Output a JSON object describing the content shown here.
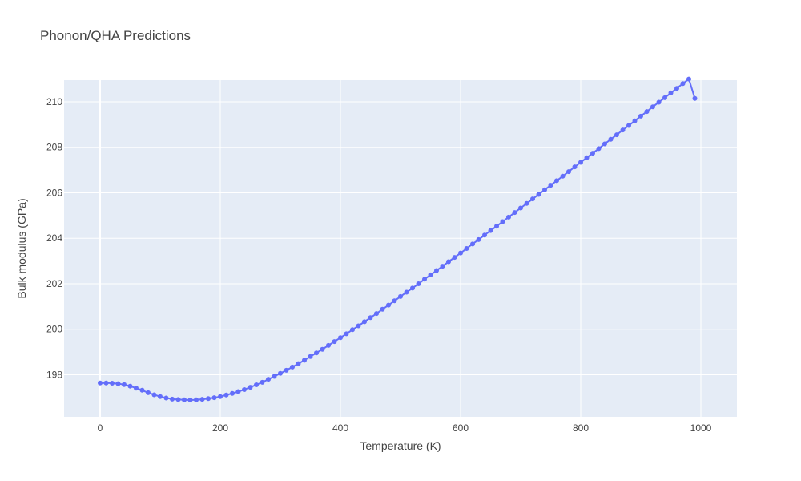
{
  "chart_data": {
    "type": "line",
    "title": "Phonon/QHA Predictions",
    "xlabel": "Temperature (K)",
    "ylabel": "Bulk modulus (GPa)",
    "xlim": [
      -60,
      1060
    ],
    "ylim": [
      196.15,
      210.95
    ],
    "x_ticks": [
      0,
      200,
      400,
      600,
      800,
      1000
    ],
    "y_ticks": [
      198,
      200,
      202,
      204,
      206,
      208,
      210
    ],
    "grid": true,
    "legend": "none",
    "colors": {
      "series": "#636efa",
      "plot_bg": "#e5ecf6",
      "grid": "#ffffff"
    },
    "series": [
      {
        "x": [
          0,
          10,
          20,
          30,
          40,
          50,
          60,
          70,
          80,
          90,
          100,
          110,
          120,
          130,
          140,
          150,
          160,
          170,
          180,
          190,
          200,
          210,
          220,
          230,
          240,
          250,
          260,
          270,
          280,
          290,
          300,
          310,
          320,
          330,
          340,
          350,
          360,
          370,
          380,
          390,
          400,
          410,
          420,
          430,
          440,
          450,
          460,
          470,
          480,
          490,
          500,
          510,
          520,
          530,
          540,
          550,
          560,
          570,
          580,
          590,
          600,
          610,
          620,
          630,
          640,
          650,
          660,
          670,
          680,
          690,
          700,
          710,
          720,
          730,
          740,
          750,
          760,
          770,
          780,
          790,
          800,
          810,
          820,
          830,
          840,
          850,
          860,
          870,
          880,
          890,
          900,
          910,
          920,
          930,
          940,
          950,
          960,
          970,
          980,
          990
        ],
        "y": [
          197.64,
          197.64,
          197.63,
          197.61,
          197.57,
          197.5,
          197.41,
          197.32,
          197.21,
          197.12,
          197.04,
          196.98,
          196.93,
          196.91,
          196.9,
          196.89,
          196.9,
          196.92,
          196.95,
          196.99,
          197.04,
          197.11,
          197.18,
          197.26,
          197.35,
          197.45,
          197.56,
          197.67,
          197.8,
          197.93,
          198.06,
          198.2,
          198.34,
          198.49,
          198.64,
          198.8,
          198.96,
          199.12,
          199.29,
          199.46,
          199.63,
          199.8,
          199.98,
          200.15,
          200.33,
          200.51,
          200.69,
          200.88,
          201.06,
          201.25,
          201.44,
          201.63,
          201.81,
          202.0,
          202.2,
          202.39,
          202.58,
          202.77,
          202.97,
          203.16,
          203.35,
          203.55,
          203.75,
          203.94,
          204.14,
          204.34,
          204.53,
          204.73,
          204.93,
          205.13,
          205.33,
          205.53,
          205.73,
          205.93,
          206.13,
          206.33,
          206.53,
          206.73,
          206.93,
          207.14,
          207.34,
          207.54,
          207.74,
          207.94,
          208.15,
          208.35,
          208.55,
          208.76,
          208.96,
          209.16,
          209.37,
          209.57,
          209.78,
          209.98,
          210.18,
          210.39,
          210.59,
          210.8,
          211.0,
          210.15
        ]
      }
    ]
  }
}
